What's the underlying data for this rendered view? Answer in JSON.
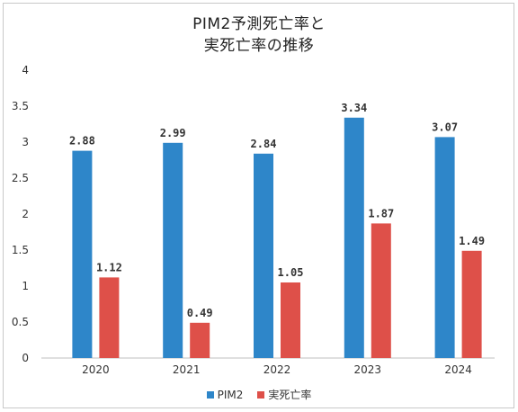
{
  "chart_data": {
    "type": "bar",
    "title_lines": [
      "PIM2予測死亡率と",
      "実死亡率の推移"
    ],
    "categories": [
      "2020",
      "2021",
      "2022",
      "2023",
      "2024"
    ],
    "series": [
      {
        "name": "PIM2",
        "values": [
          2.88,
          2.99,
          2.84,
          3.34,
          3.07
        ],
        "labels": [
          "2.88",
          "2.99",
          "2.84",
          "3.34",
          "3.07"
        ],
        "color": "#2e86c9"
      },
      {
        "name": "実死亡率",
        "values": [
          1.12,
          0.49,
          1.05,
          1.87,
          1.49
        ],
        "labels": [
          "1.12",
          "0.49",
          "1.05",
          "1.87",
          "1.49"
        ],
        "color": "#de5049"
      }
    ],
    "y_ticks": [
      "0",
      "0.5",
      "1",
      "1.5",
      "2",
      "2.5",
      "3",
      "3.5",
      "4"
    ],
    "ylim": [
      0,
      4
    ],
    "grid": false,
    "legend_position": "bottom"
  }
}
